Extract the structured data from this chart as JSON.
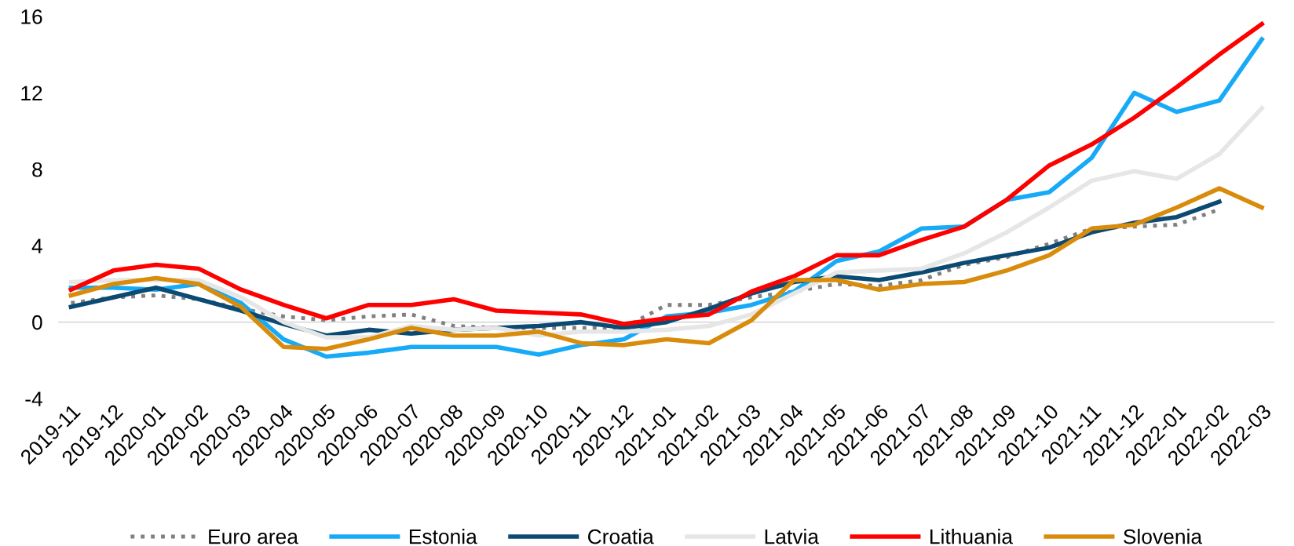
{
  "chart_data": {
    "type": "line",
    "categories": [
      "2019-11",
      "2019-12",
      "2020-01",
      "2020-02",
      "2020-03",
      "2020-04",
      "2020-05",
      "2020-06",
      "2020-07",
      "2020-08",
      "2020-09",
      "2020-10",
      "2020-11",
      "2020-12",
      "2021-01",
      "2021-02",
      "2021-03",
      "2021-04",
      "2021-05",
      "2021-06",
      "2021-07",
      "2021-08",
      "2021-09",
      "2021-10",
      "2021-11",
      "2021-12",
      "2022-01",
      "2022-02",
      "2022-03"
    ],
    "series": [
      {
        "name": "Euro area",
        "color": "#808080",
        "line_style": "dotted",
        "values": [
          1.0,
          1.3,
          1.4,
          1.2,
          0.7,
          0.3,
          0.1,
          0.3,
          0.4,
          -0.2,
          -0.3,
          -0.3,
          -0.3,
          -0.3,
          0.9,
          0.9,
          1.3,
          1.6,
          2.0,
          1.9,
          2.2,
          3.0,
          3.4,
          4.1,
          4.9,
          5.0,
          5.1,
          5.9,
          null
        ]
      },
      {
        "name": "Estonia",
        "color": "#16aaf7",
        "line_style": "solid",
        "values": [
          1.8,
          1.8,
          1.7,
          2.0,
          1.0,
          -0.9,
          -1.8,
          -1.6,
          -1.3,
          -1.3,
          -1.3,
          -1.7,
          -1.2,
          -0.9,
          0.3,
          0.5,
          0.9,
          1.6,
          3.2,
          3.7,
          4.9,
          5.0,
          6.4,
          6.8,
          8.6,
          12.0,
          11.0,
          11.6,
          14.8
        ]
      },
      {
        "name": "Croatia",
        "color": "#0b4a73",
        "line_style": "solid",
        "values": [
          0.8,
          1.3,
          1.8,
          1.2,
          0.6,
          -0.1,
          -0.7,
          -0.4,
          -0.6,
          -0.4,
          -0.3,
          -0.2,
          0.0,
          -0.3,
          0.0,
          0.7,
          1.5,
          2.1,
          2.4,
          2.2,
          2.6,
          3.1,
          3.5,
          3.9,
          4.7,
          5.2,
          5.5,
          6.3,
          null
        ]
      },
      {
        "name": "Latvia",
        "color": "#e6e6e6",
        "line_style": "solid",
        "values": [
          2.1,
          2.2,
          2.2,
          2.2,
          1.3,
          0.0,
          -0.8,
          -0.8,
          -0.2,
          -0.4,
          -0.3,
          -0.7,
          -0.5,
          -0.5,
          -0.4,
          -0.2,
          0.4,
          1.5,
          2.6,
          2.7,
          2.8,
          3.6,
          4.7,
          6.0,
          7.4,
          7.9,
          7.5,
          8.8,
          11.2
        ]
      },
      {
        "name": "Lithuania",
        "color": "#ff0000",
        "line_style": "solid",
        "values": [
          1.7,
          2.7,
          3.0,
          2.8,
          1.7,
          0.9,
          0.2,
          0.9,
          0.9,
          1.2,
          0.6,
          0.5,
          0.4,
          -0.1,
          0.2,
          0.4,
          1.6,
          2.4,
          3.5,
          3.5,
          4.3,
          5.0,
          6.4,
          8.2,
          9.3,
          10.7,
          12.3,
          14.0,
          15.6
        ]
      },
      {
        "name": "Slovenia",
        "color": "#d98c0b",
        "line_style": "solid",
        "values": [
          1.4,
          2.0,
          2.3,
          2.0,
          0.8,
          -1.3,
          -1.4,
          -0.9,
          -0.3,
          -0.7,
          -0.7,
          -0.5,
          -1.1,
          -1.2,
          -0.9,
          -1.1,
          0.1,
          2.2,
          2.2,
          1.7,
          2.0,
          2.1,
          2.7,
          3.5,
          4.9,
          5.1,
          6.0,
          7.0,
          6.0
        ]
      }
    ],
    "ylim": [
      -4,
      16
    ],
    "yticks": [
      -4,
      0,
      4,
      8,
      12,
      16
    ],
    "ref_lines": [
      {
        "axis": "y",
        "value": 0,
        "color": "#d9d9d9"
      }
    ],
    "grid": false,
    "legend": "bottom",
    "marker": "none"
  }
}
